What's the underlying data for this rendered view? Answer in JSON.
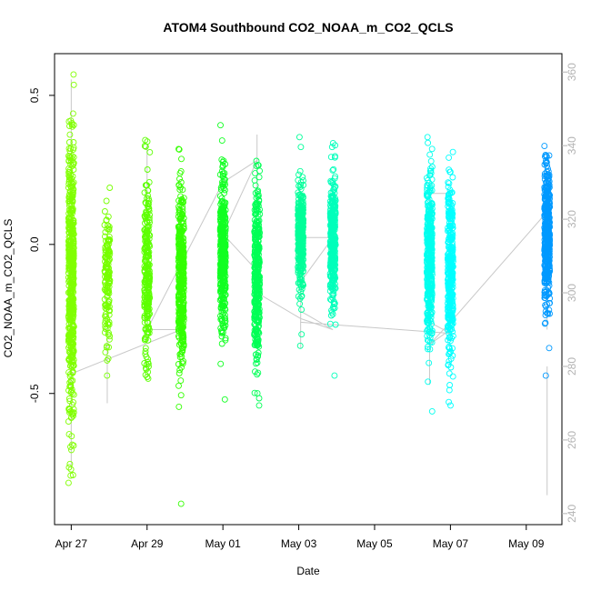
{
  "chart_data": {
    "type": "scatter",
    "title": "ATOM4 Southbound CO2_NOAA_m_CO2_QCLS",
    "xlabel": "Date",
    "ylabel": "CO2_NOAA_m_CO2_QCLS",
    "x_ticks": [
      "Apr 27",
      "Apr 29",
      "May 01",
      "May 03",
      "May 05",
      "May 07",
      "May 09"
    ],
    "x_tick_days": [
      0,
      2,
      4,
      6,
      8,
      10,
      12
    ],
    "xlim_days": [
      -0.44,
      12.94
    ],
    "ylim": [
      -0.94,
      0.64
    ],
    "y_ticks": [
      -0.5,
      0.0,
      0.5
    ],
    "y_tick_labels": [
      "-0.5",
      "0.0",
      "0.5"
    ],
    "y2lim": [
      237,
      365
    ],
    "y2_ticks": [
      240,
      260,
      280,
      300,
      320,
      340,
      360
    ],
    "grid": false,
    "series": [
      {
        "day": 0.0,
        "center": -0.12,
        "spread": 0.23,
        "min": -0.8,
        "max": 0.57,
        "n": 560,
        "color": "#80ff00"
      },
      {
        "day": 0.95,
        "center": -0.12,
        "spread": 0.11,
        "min": -0.44,
        "max": 0.19,
        "n": 150,
        "color": "#77ff00"
      },
      {
        "day": 2.0,
        "center": -0.08,
        "spread": 0.15,
        "min": -0.45,
        "max": 0.35,
        "n": 260,
        "color": "#5cff00"
      },
      {
        "day": 2.9,
        "center": -0.12,
        "spread": 0.15,
        "min": -0.87,
        "max": 0.32,
        "n": 420,
        "color": "#33ff00"
      },
      {
        "day": 4.0,
        "center": -0.02,
        "spread": 0.13,
        "min": -0.52,
        "max": 0.4,
        "n": 380,
        "color": "#11ff22"
      },
      {
        "day": 4.9,
        "center": -0.1,
        "spread": 0.15,
        "min": -0.54,
        "max": 0.28,
        "n": 380,
        "color": "#00ff55"
      },
      {
        "day": 6.05,
        "center": 0.02,
        "spread": 0.09,
        "min": -0.34,
        "max": 0.36,
        "n": 340,
        "color": "#00ff99"
      },
      {
        "day": 6.9,
        "center": 0.0,
        "spread": 0.11,
        "min": -0.44,
        "max": 0.34,
        "n": 340,
        "color": "#00ffbb"
      },
      {
        "day": 9.45,
        "center": -0.05,
        "spread": 0.15,
        "min": -0.56,
        "max": 0.36,
        "n": 420,
        "color": "#00ffee"
      },
      {
        "day": 10.0,
        "center": -0.1,
        "spread": 0.15,
        "min": -0.54,
        "max": 0.31,
        "n": 360,
        "color": "#00ffff"
      },
      {
        "day": 12.55,
        "center": 0.03,
        "spread": 0.12,
        "min": -0.44,
        "max": 0.33,
        "n": 440,
        "color": "#0099ff"
      }
    ],
    "path_series": {
      "color": "#c8c8c8",
      "points": [
        [
          0.0,
          290
        ],
        [
          0.0,
          278
        ],
        [
          2.9,
          290
        ],
        [
          2.0,
          290
        ],
        [
          4.0,
          330
        ],
        [
          4.9,
          336
        ],
        [
          4.0,
          316
        ],
        [
          4.9,
          306
        ],
        [
          4.9,
          300
        ],
        [
          6.05,
          293
        ],
        [
          6.9,
          290
        ],
        [
          6.05,
          295
        ],
        [
          6.05,
          301
        ],
        [
          6.05,
          315
        ],
        [
          6.9,
          315
        ],
        [
          6.05,
          303
        ],
        [
          6.05,
          292
        ],
        [
          10.0,
          289
        ],
        [
          9.45,
          292
        ],
        [
          9.45,
          327
        ],
        [
          10.0,
          327
        ],
        [
          10.0,
          290
        ],
        [
          9.45,
          286
        ],
        [
          10.0,
          292
        ],
        [
          12.55,
          322
        ],
        [
          12.55,
          290
        ]
      ],
      "spikes": [
        [
          0.0,
          330,
          358
        ],
        [
          0.0,
          252,
          285
        ],
        [
          0.95,
          270,
          292
        ],
        [
          2.0,
          340,
          322
        ],
        [
          4.9,
          343,
          322
        ],
        [
          6.05,
          285,
          292
        ],
        [
          9.45,
          275,
          295
        ],
        [
          12.55,
          245,
          280
        ]
      ]
    }
  }
}
